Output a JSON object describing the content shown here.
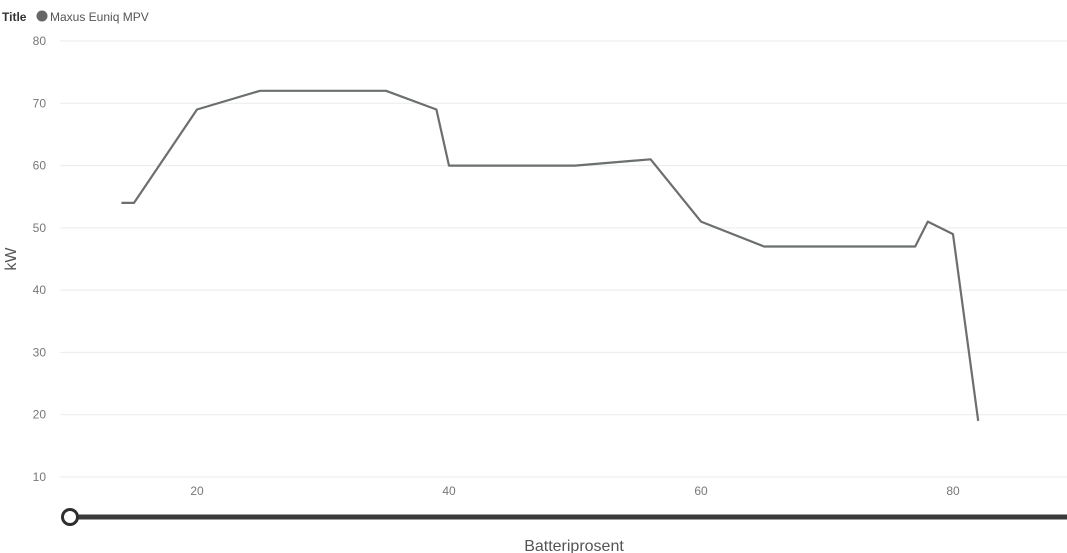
{
  "legend": {
    "title": "Title",
    "entry": "Maxus Euniq MPV"
  },
  "chart_data": {
    "type": "line",
    "xlabel": "Batteriprosent",
    "ylabel": "kW",
    "xlim": [
      10,
      90
    ],
    "ylim": [
      10,
      80
    ],
    "x_ticks": [
      20,
      40,
      60,
      80
    ],
    "y_ticks": [
      10,
      20,
      30,
      40,
      50,
      60,
      70,
      80
    ],
    "grid": "horizontal",
    "legend_position": "top-left",
    "series": [
      {
        "name": "Maxus Euniq MPV",
        "color": "#6b6f6e",
        "x": [
          14,
          15,
          20,
          25,
          30,
          35,
          39,
          40,
          45,
          50,
          56,
          60,
          65,
          70,
          77,
          78,
          80,
          82
        ],
        "y": [
          54,
          54,
          69,
          72,
          72,
          72,
          69,
          60,
          60,
          60,
          61,
          51,
          47,
          47,
          47,
          51,
          49,
          19
        ]
      }
    ]
  },
  "slider": {
    "value": 0
  }
}
